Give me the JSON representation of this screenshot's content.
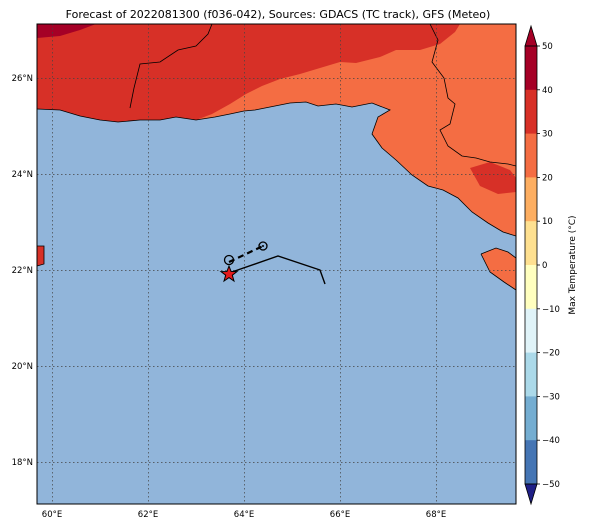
{
  "title": "Forecast of 2022081300 (f036-042), Sources: GDACS (TC track), GFS (Meteo)",
  "map": {
    "lon_ticks": [
      "60°E",
      "62°E",
      "64°E",
      "66°E",
      "68°E"
    ],
    "lat_ticks": [
      "26°N",
      "24°N",
      "22°N",
      "20°N",
      "18°N"
    ],
    "colors": {
      "sea": "#91b5da",
      "land_20_30": "#f46d43",
      "land_30_40": "#d73027",
      "land_40_50": "#a50026",
      "track": "#000000",
      "current_position_star": "#e41a1c",
      "grid": "#444444"
    },
    "markers": {
      "current_position_icon": "star-icon",
      "forecast_position_icon": "circle-dot-icon"
    }
  },
  "colorbar": {
    "label": "Max Temperature (°C)",
    "ticks": [
      "50",
      "40",
      "30",
      "20",
      "10",
      "0",
      "−10",
      "−20",
      "−30",
      "−40",
      "−50"
    ],
    "colors": [
      "#a50026",
      "#d73027",
      "#f46d43",
      "#fdae61",
      "#fee090",
      "#ffffbf",
      "#e0f3f8",
      "#abd9e9",
      "#74add1",
      "#4575b4",
      "#313695",
      "#1f1f86"
    ]
  }
}
